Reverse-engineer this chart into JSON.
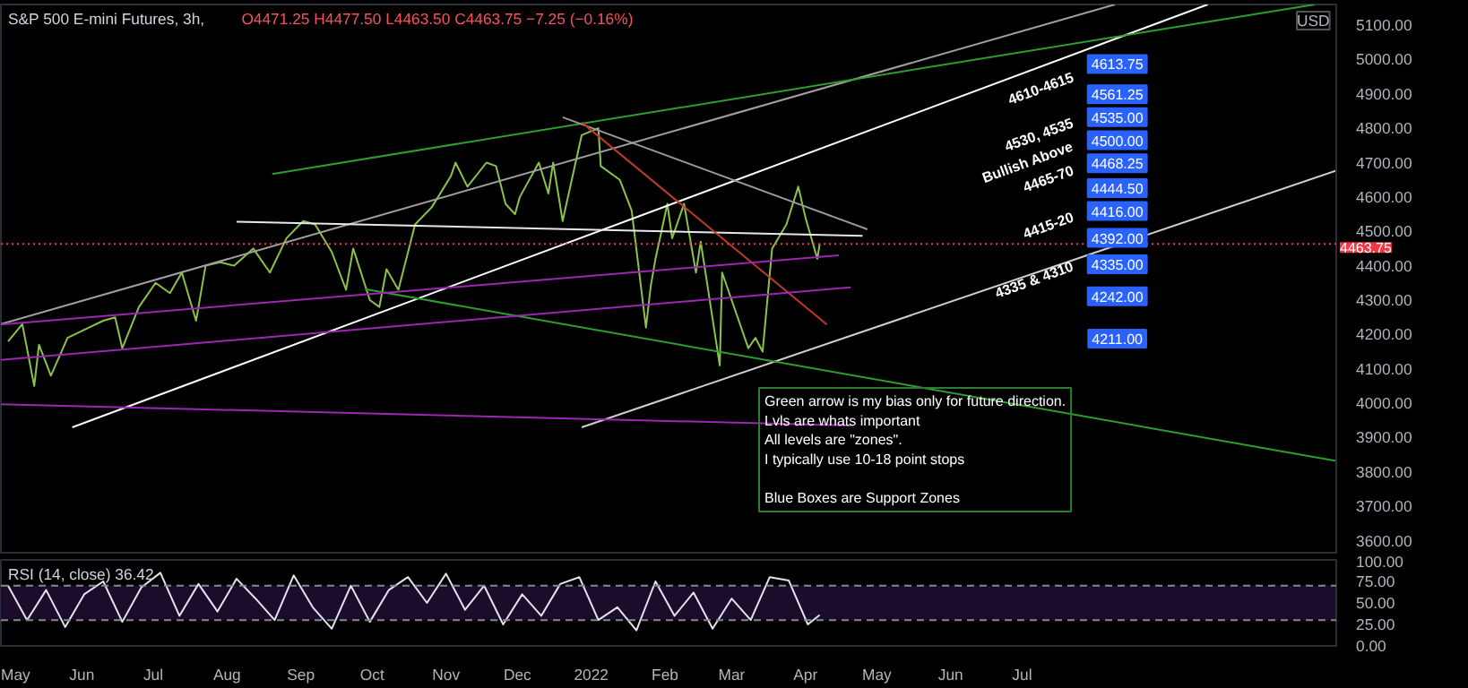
{
  "chart_data": [
    {
      "type": "line",
      "title": "S&P 500 E-mini Futures, 3h,",
      "subtitle": "O4471.25 H4477.50 L4463.50 C4463.75 −7.25 (−0.16%)",
      "ylabel": "USD",
      "xlim": [
        "2021-04-28",
        "2022-11-10"
      ],
      "ylim": [
        3565,
        5160
      ],
      "tick_labels": "y",
      "grid": false,
      "line_style": "solid",
      "marker": "none",
      "yticks": [
        {
          "value": 3600,
          "label": "3600.00"
        },
        {
          "value": 3700,
          "label": "3700.00"
        },
        {
          "value": 3800,
          "label": "3800.00"
        },
        {
          "value": 3900,
          "label": "3900.00"
        },
        {
          "value": 4000,
          "label": "4000.00"
        },
        {
          "value": 4100,
          "label": "4100.00"
        },
        {
          "value": 4200,
          "label": "4200.00"
        },
        {
          "value": 4300,
          "label": "4300.00"
        },
        {
          "value": 4400,
          "label": "4400.00"
        },
        {
          "value": 4500,
          "label": "4500.00"
        },
        {
          "value": 4600,
          "label": "4600.00"
        },
        {
          "value": 4700,
          "label": "4700.00"
        },
        {
          "value": 4800,
          "label": "4800.00"
        },
        {
          "value": 4900,
          "label": "4900.00"
        },
        {
          "value": 5000,
          "label": "5000.00"
        },
        {
          "value": 5100,
          "label": "5100.00"
        }
      ],
      "series": [
        {
          "color": "#8bc34a",
          "x": [
            "2021-05-01",
            "2021-05-07",
            "2021-05-12",
            "2021-05-14",
            "2021-05-19",
            "2021-05-26",
            "2021-06-04",
            "2021-06-10",
            "2021-06-15",
            "2021-06-18",
            "2021-06-25",
            "2021-07-02",
            "2021-07-08",
            "2021-07-13",
            "2021-07-19",
            "2021-07-23",
            "2021-07-29",
            "2021-08-04",
            "2021-08-12",
            "2021-08-19",
            "2021-08-26",
            "2021-09-02",
            "2021-09-07",
            "2021-09-14",
            "2021-09-20",
            "2021-09-23",
            "2021-09-30",
            "2021-10-04",
            "2021-10-07",
            "2021-10-12",
            "2021-10-19",
            "2021-10-26",
            "2021-11-03",
            "2021-11-05",
            "2021-11-10",
            "2021-11-18",
            "2021-11-22",
            "2021-11-26",
            "2021-11-30",
            "2021-12-02",
            "2021-12-10",
            "2021-12-14",
            "2021-12-16",
            "2021-12-20",
            "2021-12-28",
            "2022-01-04",
            "2022-01-05",
            "2022-01-13",
            "2022-01-18",
            "2022-01-24",
            "2022-01-26",
            "2022-01-28",
            "2022-02-02",
            "2022-02-04",
            "2022-02-09",
            "2022-02-14",
            "2022-02-16",
            "2022-02-24",
            "2022-02-25",
            "2022-03-01",
            "2022-03-08",
            "2022-03-11",
            "2022-03-14",
            "2022-03-18",
            "2022-03-24",
            "2022-03-29",
            "2022-04-01",
            "2022-04-06",
            "2022-04-07"
          ],
          "values": [
            4180,
            4230,
            4050,
            4170,
            4080,
            4190,
            4220,
            4240,
            4250,
            4160,
            4280,
            4350,
            4320,
            4380,
            4240,
            4400,
            4410,
            4400,
            4450,
            4380,
            4480,
            4530,
            4520,
            4440,
            4330,
            4450,
            4300,
            4280,
            4390,
            4330,
            4520,
            4570,
            4660,
            4700,
            4630,
            4700,
            4690,
            4580,
            4550,
            4600,
            4700,
            4610,
            4700,
            4530,
            4780,
            4800,
            4690,
            4650,
            4560,
            4220,
            4340,
            4420,
            4580,
            4480,
            4580,
            4380,
            4470,
            4110,
            4380,
            4300,
            4160,
            4190,
            4150,
            4450,
            4520,
            4630,
            4540,
            4420,
            4464
          ]
        },
        {
          "color": "#ffffff",
          "x": [
            "2021-05-28",
            "2022-09-17"
          ],
          "values": [
            3930,
            5160
          ]
        },
        {
          "color": "#d0d0d0",
          "x": [
            "2021-12-28",
            "2022-11-10"
          ],
          "values": [
            3930,
            4677
          ]
        },
        {
          "color": "#a0a0a0",
          "x": [
            "2021-04-28",
            "2022-08-09"
          ],
          "values": [
            4230,
            5160
          ]
        },
        {
          "color": "#2e9e2e",
          "x": [
            "2021-08-20",
            "2022-11-01"
          ],
          "values": [
            4667,
            5160
          ]
        },
        {
          "color": "#2e9e2e",
          "x": [
            "2021-09-28",
            "2022-11-10"
          ],
          "values": [
            4332,
            3832
          ]
        },
        {
          "color": "#e8e8e8",
          "x": [
            "2021-08-05",
            "2022-04-25"
          ],
          "values": [
            4528,
            4487
          ]
        },
        {
          "color": "#9a9a9a",
          "x": [
            "2021-12-20",
            "2022-04-27"
          ],
          "values": [
            4832,
            4506
          ]
        },
        {
          "color": "#c0392b",
          "x": [
            "2021-12-28",
            "2022-04-10"
          ],
          "values": [
            4817,
            4229
          ]
        },
        {
          "color": "#9c27b0",
          "x": [
            "2021-04-28",
            "2022-04-20"
          ],
          "values": [
            3997,
            3935
          ]
        },
        {
          "color": "#9c27b0",
          "x": [
            "2021-04-28",
            "2022-04-20"
          ],
          "values": [
            4126,
            4337
          ]
        },
        {
          "color": "#9c27b0",
          "x": [
            "2021-04-28",
            "2022-04-15"
          ],
          "values": [
            4229,
            4430
          ]
        }
      ],
      "ref_lines": [
        {
          "axis": "y",
          "value": 4463.75,
          "label": "4463.75",
          "color": "#f23645",
          "line_style": "dotted"
        }
      ],
      "annotations": [
        {
          "text": "4613.75",
          "x": "2022-08-10",
          "y": 4987
        },
        {
          "text": "4561.25",
          "x": "2022-08-10",
          "y": 4899
        },
        {
          "text": "4535.00",
          "x": "2022-08-10",
          "y": 4832
        },
        {
          "text": "4500.00",
          "x": "2022-08-10",
          "y": 4765
        },
        {
          "text": "4468.25",
          "x": "2022-08-10",
          "y": 4698
        },
        {
          "text": "4444.50",
          "x": "2022-08-10",
          "y": 4626
        },
        {
          "text": "4416.00",
          "x": "2022-08-10",
          "y": 4559
        },
        {
          "text": "4392.00",
          "x": "2022-08-10",
          "y": 4481
        },
        {
          "text": "4335.00",
          "x": "2022-08-10",
          "y": 4404
        },
        {
          "text": "4242.00",
          "x": "2022-08-10",
          "y": 4311
        },
        {
          "text": "4211.00",
          "x": "2022-08-10",
          "y": 4188
        },
        "4610-4615",
        "4530, 4535",
        "Bullish Above",
        "4465-70",
        "4415-20",
        "4335 & 4310",
        "Green arrow is my bias only for future direction.\nLvls are whats important\nAll levels are \"zones\".\nI typically use 10-18 point stops\n\nBlue Boxes are Support Zones"
      ]
    },
    {
      "type": "line",
      "title": "RSI (14, close) 36.42",
      "xlim": [
        "2021-04-28",
        "2022-11-10"
      ],
      "ylim": [
        0,
        100
      ],
      "grid": false,
      "line_style": "solid",
      "marker": "none",
      "yticks": [
        {
          "value": 0,
          "label": "0.00"
        },
        {
          "value": 25,
          "label": "25.00"
        },
        {
          "value": 50,
          "label": "50.00"
        },
        {
          "value": 75,
          "label": "75.00"
        },
        {
          "value": 100,
          "label": "100.00"
        }
      ],
      "xticks": [
        {
          "value": "2021-05-01",
          "label": "May"
        },
        {
          "value": "2021-06-01",
          "label": "Jun"
        },
        {
          "value": "2021-07-01",
          "label": "Jul"
        },
        {
          "value": "2021-08-01",
          "label": "Aug"
        },
        {
          "value": "2021-09-01",
          "label": "Sep"
        },
        {
          "value": "2021-10-01",
          "label": "Oct"
        },
        {
          "value": "2021-11-01",
          "label": "Nov"
        },
        {
          "value": "2021-12-01",
          "label": "Dec"
        },
        {
          "value": "2022-01-01",
          "label": "2022"
        },
        {
          "value": "2022-02-01",
          "label": "Feb"
        },
        {
          "value": "2022-03-01",
          "label": "Mar"
        },
        {
          "value": "2022-04-01",
          "label": "Apr"
        },
        {
          "value": "2022-05-01",
          "label": "May"
        },
        {
          "value": "2022-06-01",
          "label": "Jun"
        },
        {
          "value": "2022-07-01",
          "label": "Jul"
        }
      ],
      "series": [
        {
          "color": "#e6e0f0",
          "x": [
            "2021-05-01",
            "2021-05-09",
            "2021-05-17",
            "2021-05-25",
            "2021-06-02",
            "2021-06-10",
            "2021-06-18",
            "2021-06-26",
            "2021-07-04",
            "2021-07-12",
            "2021-07-20",
            "2021-07-28",
            "2021-08-05",
            "2021-08-13",
            "2021-08-21",
            "2021-08-29",
            "2021-09-06",
            "2021-09-14",
            "2021-09-22",
            "2021-09-30",
            "2021-10-08",
            "2021-10-16",
            "2021-10-24",
            "2021-11-01",
            "2021-11-09",
            "2021-11-17",
            "2021-11-25",
            "2021-12-03",
            "2021-12-11",
            "2021-12-19",
            "2021-12-27",
            "2022-01-04",
            "2022-01-12",
            "2022-01-20",
            "2022-01-28",
            "2022-02-05",
            "2022-02-13",
            "2022-02-21",
            "2022-03-01",
            "2022-03-09",
            "2022-03-17",
            "2022-03-25",
            "2022-04-02",
            "2022-04-07"
          ],
          "values": [
            70,
            30,
            65,
            22,
            60,
            75,
            28,
            68,
            85,
            35,
            72,
            40,
            78,
            55,
            30,
            82,
            45,
            20,
            70,
            28,
            65,
            80,
            50,
            84,
            42,
            70,
            25,
            60,
            35,
            72,
            80,
            30,
            45,
            18,
            75,
            35,
            62,
            20,
            55,
            30,
            80,
            76,
            25,
            36
          ]
        }
      ],
      "bands": [
        {
          "axis": "y",
          "from": 30,
          "to": 70,
          "color": "#1c0c2c"
        }
      ],
      "ref_lines": [
        {
          "axis": "y",
          "value": 70,
          "color": "#888888",
          "line_style": "dashed"
        },
        {
          "axis": "y",
          "value": 30,
          "color": "#888888",
          "line_style": "dashed"
        }
      ]
    }
  ]
}
